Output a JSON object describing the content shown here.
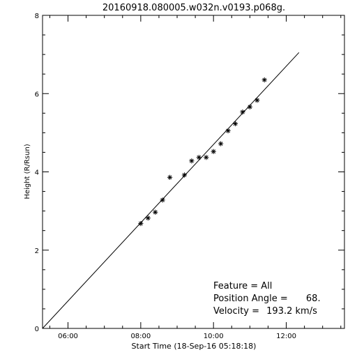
{
  "chart_data": {
    "type": "scatter",
    "title": "20160918.080005.w032n.v0193.p068g.",
    "xlabel": "Start Time (18-Sep-16 05:18:18)",
    "ylabel": "Height (R/Rsun)",
    "x_unit": "hours",
    "xlim": [
      5.3,
      13.6
    ],
    "ylim": [
      0,
      8
    ],
    "x_ticks": [
      {
        "value": 6,
        "label": "06:00"
      },
      {
        "value": 8,
        "label": "08:00"
      },
      {
        "value": 10,
        "label": "10:00"
      },
      {
        "value": 12,
        "label": "12:00"
      }
    ],
    "y_ticks": [
      {
        "value": 0,
        "label": "0"
      },
      {
        "value": 2,
        "label": "2"
      },
      {
        "value": 4,
        "label": "4"
      },
      {
        "value": 6,
        "label": "6"
      },
      {
        "value": 8,
        "label": "8"
      }
    ],
    "series": [
      {
        "marker": "asterisk",
        "points": [
          {
            "x": 8.0,
            "y": 2.68
          },
          {
            "x": 8.2,
            "y": 2.82
          },
          {
            "x": 8.4,
            "y": 2.97
          },
          {
            "x": 8.6,
            "y": 3.28
          },
          {
            "x": 8.8,
            "y": 3.86
          },
          {
            "x": 9.2,
            "y": 3.92
          },
          {
            "x": 9.4,
            "y": 4.28
          },
          {
            "x": 9.6,
            "y": 4.37
          },
          {
            "x": 9.8,
            "y": 4.37
          },
          {
            "x": 10.0,
            "y": 4.52
          },
          {
            "x": 10.2,
            "y": 4.72
          },
          {
            "x": 10.4,
            "y": 5.05
          },
          {
            "x": 10.6,
            "y": 5.23
          },
          {
            "x": 10.8,
            "y": 5.53
          },
          {
            "x": 11.0,
            "y": 5.66
          },
          {
            "x": 11.2,
            "y": 5.83
          },
          {
            "x": 11.4,
            "y": 6.35
          }
        ]
      }
    ],
    "fit_line": {
      "x": [
        5.3,
        12.35
      ],
      "y": [
        0.0,
        7.05
      ]
    },
    "annotations": [
      {
        "label": "Feature = ",
        "value": "All"
      },
      {
        "label": "Position Angle = ",
        "value": "68."
      },
      {
        "label": "Velocity = ",
        "value": "193.2 km/s"
      }
    ],
    "grid": false
  }
}
